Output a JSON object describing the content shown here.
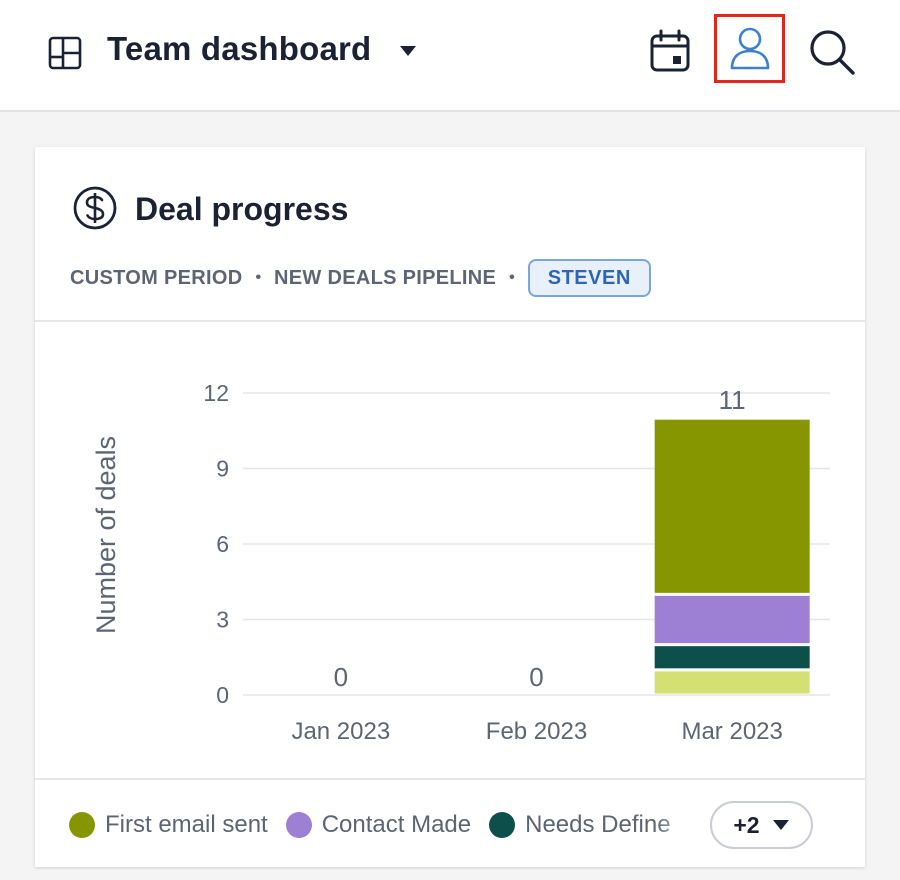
{
  "topbar": {
    "dashboard_icon": "dashboard-grid-icon",
    "title": "Team dashboard",
    "caret_icon": "caret-down-icon",
    "actions": [
      {
        "name": "calendar-icon"
      },
      {
        "name": "user-icon",
        "highlighted": true
      },
      {
        "name": "search-icon"
      }
    ]
  },
  "card": {
    "icon": "dollar-circle-icon",
    "title": "Deal progress",
    "meta": [
      "CUSTOM PERIOD",
      "NEW DEALS PIPELINE"
    ],
    "owner_badge": "STEVEN"
  },
  "chart_data": {
    "type": "bar",
    "stacked": true,
    "categories": [
      "Jan 2023",
      "Feb 2023",
      "Mar 2023"
    ],
    "series": [
      {
        "name": "",
        "color": "#d5e073",
        "values": [
          0,
          0,
          1
        ]
      },
      {
        "name": "Needs Define",
        "color": "#0d4f4a",
        "values": [
          0,
          0,
          1
        ]
      },
      {
        "name": "Contact Made",
        "color": "#9d80d3",
        "values": [
          0,
          0,
          2
        ]
      },
      {
        "name": "First email sent",
        "color": "#859600",
        "values": [
          0,
          0,
          7
        ]
      }
    ],
    "totals": [
      "0",
      "0",
      "11"
    ],
    "ylabel": "Number of deals",
    "ylim": [
      0,
      12
    ],
    "yticks": [
      0,
      3,
      6,
      9,
      12
    ],
    "grid": true
  },
  "legend": {
    "items": [
      {
        "label": "First email sent",
        "color": "#859600"
      },
      {
        "label": "Contact Made",
        "color": "#9d80d3"
      },
      {
        "label": "Needs Define",
        "color": "#0d4f4a"
      }
    ],
    "more_label": "+2"
  }
}
